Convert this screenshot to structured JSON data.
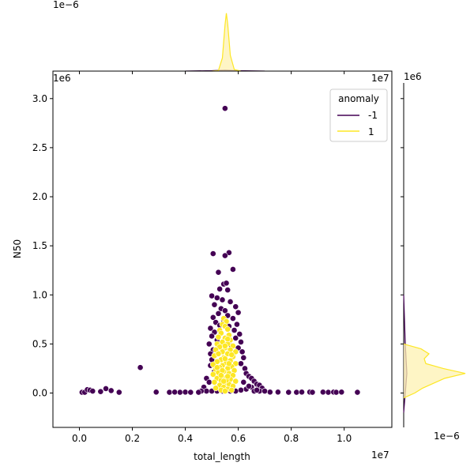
{
  "chart_data": {
    "type": "scatter",
    "xlabel": "total_length",
    "ylabel": "N50",
    "x_offset_text": "1e7",
    "y_offset_text": "1e6",
    "top_marginal_offset_text": "1e−6",
    "right_marginal_offset_text": "1e−6",
    "xlim": [
      -1000000,
      11800000
    ],
    "ylim": [
      -350000,
      3280000
    ],
    "x_ticks": [
      0,
      2000000,
      4000000,
      6000000,
      8000000,
      10000000
    ],
    "x_tick_labels": [
      "0.0",
      "0.2",
      "0.4",
      "0.6",
      "0.8",
      "1.0"
    ],
    "y_ticks": [
      0,
      500000,
      1000000,
      1500000,
      2000000,
      2500000,
      3000000
    ],
    "y_tick_labels": [
      "0.0",
      "0.5",
      "1.0",
      "1.5",
      "2.0",
      "2.5",
      "3.0"
    ],
    "legend": {
      "title": "anomaly",
      "placement": "top-right",
      "entries": [
        {
          "label": "-1",
          "color": "#440154"
        },
        {
          "label": "1",
          "color": "#fde725"
        }
      ]
    },
    "colors": {
      "anomaly": "#440154",
      "normal": "#fde725",
      "normal_fill": "#fdf2b2"
    },
    "series": [
      {
        "name": "-1",
        "color": "#440154",
        "points": [
          [
            5500000,
            2900000
          ],
          [
            2300000,
            260000
          ],
          [
            5050000,
            1420000
          ],
          [
            5650000,
            1430000
          ],
          [
            5500000,
            1400000
          ],
          [
            5250000,
            1230000
          ],
          [
            5800000,
            1260000
          ],
          [
            5450000,
            1110000
          ],
          [
            5550000,
            1120000
          ],
          [
            5300000,
            1060000
          ],
          [
            5600000,
            1050000
          ],
          [
            5000000,
            990000
          ],
          [
            5200000,
            970000
          ],
          [
            5400000,
            950000
          ],
          [
            5700000,
            930000
          ],
          [
            5100000,
            900000
          ],
          [
            5900000,
            880000
          ],
          [
            5350000,
            860000
          ],
          [
            5500000,
            840000
          ],
          [
            6000000,
            820000
          ],
          [
            5250000,
            810000
          ],
          [
            5600000,
            790000
          ],
          [
            5050000,
            770000
          ],
          [
            5800000,
            760000
          ],
          [
            5450000,
            740000
          ],
          [
            5150000,
            720000
          ],
          [
            5950000,
            700000
          ],
          [
            5300000,
            690000
          ],
          [
            5650000,
            680000
          ],
          [
            4950000,
            660000
          ],
          [
            5850000,
            640000
          ],
          [
            5100000,
            620000
          ],
          [
            6050000,
            600000
          ],
          [
            5000000,
            580000
          ],
          [
            5900000,
            560000
          ],
          [
            5200000,
            540000
          ],
          [
            6100000,
            520000
          ],
          [
            4900000,
            500000
          ],
          [
            5750000,
            480000
          ],
          [
            6000000,
            460000
          ],
          [
            5050000,
            440000
          ],
          [
            6150000,
            420000
          ],
          [
            4950000,
            400000
          ],
          [
            6200000,
            360000
          ],
          [
            5000000,
            340000
          ],
          [
            6100000,
            300000
          ],
          [
            4950000,
            280000
          ],
          [
            6250000,
            250000
          ],
          [
            5100000,
            220000
          ],
          [
            6300000,
            200000
          ],
          [
            6400000,
            170000
          ],
          [
            6500000,
            150000
          ],
          [
            4800000,
            150000
          ],
          [
            6600000,
            120000
          ],
          [
            4900000,
            110000
          ],
          [
            6700000,
            90000
          ],
          [
            6800000,
            80000
          ],
          [
            6500000,
            60000
          ],
          [
            4700000,
            60000
          ],
          [
            6900000,
            50000
          ],
          [
            6300000,
            40000
          ],
          [
            6100000,
            30000
          ],
          [
            5900000,
            20000
          ],
          [
            5700000,
            20000
          ],
          [
            5400000,
            20000
          ],
          [
            5200000,
            20000
          ],
          [
            5000000,
            20000
          ],
          [
            4800000,
            20000
          ],
          [
            4600000,
            20000
          ],
          [
            6600000,
            20000
          ],
          [
            6800000,
            20000
          ],
          [
            6400000,
            70000
          ],
          [
            6200000,
            110000
          ],
          [
            6700000,
            30000
          ],
          [
            7000000,
            20000
          ],
          [
            100000,
            8000
          ],
          [
            200000,
            8000
          ],
          [
            300000,
            35000
          ],
          [
            400000,
            30000
          ],
          [
            500000,
            20000
          ],
          [
            800000,
            15000
          ],
          [
            1000000,
            45000
          ],
          [
            1200000,
            25000
          ],
          [
            1500000,
            8000
          ],
          [
            2900000,
            10000
          ],
          [
            3400000,
            8000
          ],
          [
            3600000,
            10000
          ],
          [
            3800000,
            8000
          ],
          [
            4000000,
            10000
          ],
          [
            4200000,
            8000
          ],
          [
            4500000,
            8000
          ],
          [
            7200000,
            10000
          ],
          [
            7500000,
            10000
          ],
          [
            7900000,
            8000
          ],
          [
            8200000,
            8000
          ],
          [
            8400000,
            10000
          ],
          [
            8700000,
            10000
          ],
          [
            8800000,
            8000
          ],
          [
            9200000,
            10000
          ],
          [
            9400000,
            8000
          ],
          [
            9600000,
            10000
          ],
          [
            9700000,
            8000
          ],
          [
            9900000,
            10000
          ],
          [
            10500000,
            8000
          ]
        ]
      },
      {
        "name": "1",
        "color": "#fde725",
        "points": [
          [
            5450000,
            760000
          ],
          [
            5550000,
            730000
          ],
          [
            5400000,
            700000
          ],
          [
            5500000,
            680000
          ],
          [
            5300000,
            640000
          ],
          [
            5600000,
            650000
          ],
          [
            5350000,
            610000
          ],
          [
            5650000,
            590000
          ],
          [
            5250000,
            570000
          ],
          [
            5500000,
            560000
          ],
          [
            5700000,
            540000
          ],
          [
            5400000,
            520000
          ],
          [
            5200000,
            500000
          ],
          [
            5600000,
            500000
          ],
          [
            5800000,
            480000
          ],
          [
            5300000,
            470000
          ],
          [
            5500000,
            460000
          ],
          [
            5150000,
            440000
          ],
          [
            5700000,
            440000
          ],
          [
            5400000,
            420000
          ],
          [
            5900000,
            420000
          ],
          [
            5250000,
            400000
          ],
          [
            5600000,
            400000
          ],
          [
            5100000,
            380000
          ],
          [
            5800000,
            370000
          ],
          [
            5450000,
            360000
          ],
          [
            5350000,
            340000
          ],
          [
            5700000,
            330000
          ],
          [
            5200000,
            320000
          ],
          [
            5550000,
            310000
          ],
          [
            5900000,
            300000
          ],
          [
            5050000,
            290000
          ],
          [
            5400000,
            280000
          ],
          [
            5750000,
            270000
          ],
          [
            5300000,
            260000
          ],
          [
            5600000,
            250000
          ],
          [
            5150000,
            240000
          ],
          [
            5850000,
            230000
          ],
          [
            5450000,
            220000
          ],
          [
            5250000,
            210000
          ],
          [
            5650000,
            200000
          ],
          [
            5050000,
            190000
          ],
          [
            5800000,
            180000
          ],
          [
            5400000,
            170000
          ],
          [
            5550000,
            160000
          ],
          [
            5200000,
            150000
          ],
          [
            5700000,
            140000
          ],
          [
            5350000,
            130000
          ],
          [
            5900000,
            120000
          ],
          [
            5100000,
            110000
          ],
          [
            5500000,
            100000
          ],
          [
            5650000,
            90000
          ],
          [
            5300000,
            80000
          ],
          [
            5800000,
            70000
          ],
          [
            5450000,
            60000
          ],
          [
            5150000,
            50000
          ],
          [
            5600000,
            40000
          ],
          [
            5350000,
            30000
          ],
          [
            5750000,
            30000
          ],
          [
            5500000,
            20000
          ],
          [
            5250000,
            400000
          ],
          [
            5500000,
            350000
          ],
          [
            5650000,
            300000
          ],
          [
            5400000,
            230000
          ],
          [
            5600000,
            550000
          ],
          [
            5500000,
            480000
          ],
          [
            5350000,
            180000
          ],
          [
            5550000,
            130000
          ],
          [
            5750000,
            390000
          ],
          [
            5200000,
            260000
          ],
          [
            5450000,
            120000
          ],
          [
            5600000,
            170000
          ]
        ]
      }
    ],
    "top_marginal": {
      "series": [
        {
          "name": "-1",
          "color": "#440154",
          "x": [
            4000000,
            5000000,
            5500000,
            6000000,
            7000000
          ],
          "density": [
            1e-06,
            8e-06,
            2e-05,
            8e-06,
            1e-06
          ]
        },
        {
          "name": "1",
          "color": "#fde725",
          "x": [
            5000000,
            5250000,
            5400000,
            5500000,
            5550000,
            5600000,
            5700000,
            5850000,
            6100000
          ],
          "density": [
            0,
            1e-05,
            0.00025,
            0.00088,
            0.0011,
            0.0009,
            0.0003,
            3e-05,
            0
          ]
        }
      ],
      "ylim": [
        0,
        0.0012
      ]
    },
    "right_marginal": {
      "series": [
        {
          "name": "-1",
          "color": "#440154",
          "y": [
            -200000,
            0,
            200000,
            500000,
            1000000
          ],
          "density": [
            0,
            1e-07,
            2e-07,
            1e-07,
            0
          ]
        },
        {
          "name": "1",
          "color": "#fde725",
          "y": [
            -50000,
            0,
            50000,
            100000,
            150000,
            200000,
            250000,
            300000,
            350000,
            400000,
            450000,
            500000
          ],
          "density": [
            0,
            7e-07,
            1.2e-06,
            1.9e-06,
            2.6e-06,
            3.9e-06,
            2.5e-06,
            1.4e-06,
            1.3e-06,
            1.6e-06,
            1.1e-06,
            0
          ]
        }
      ],
      "xlim": [
        0,
        4.2e-06
      ]
    }
  }
}
